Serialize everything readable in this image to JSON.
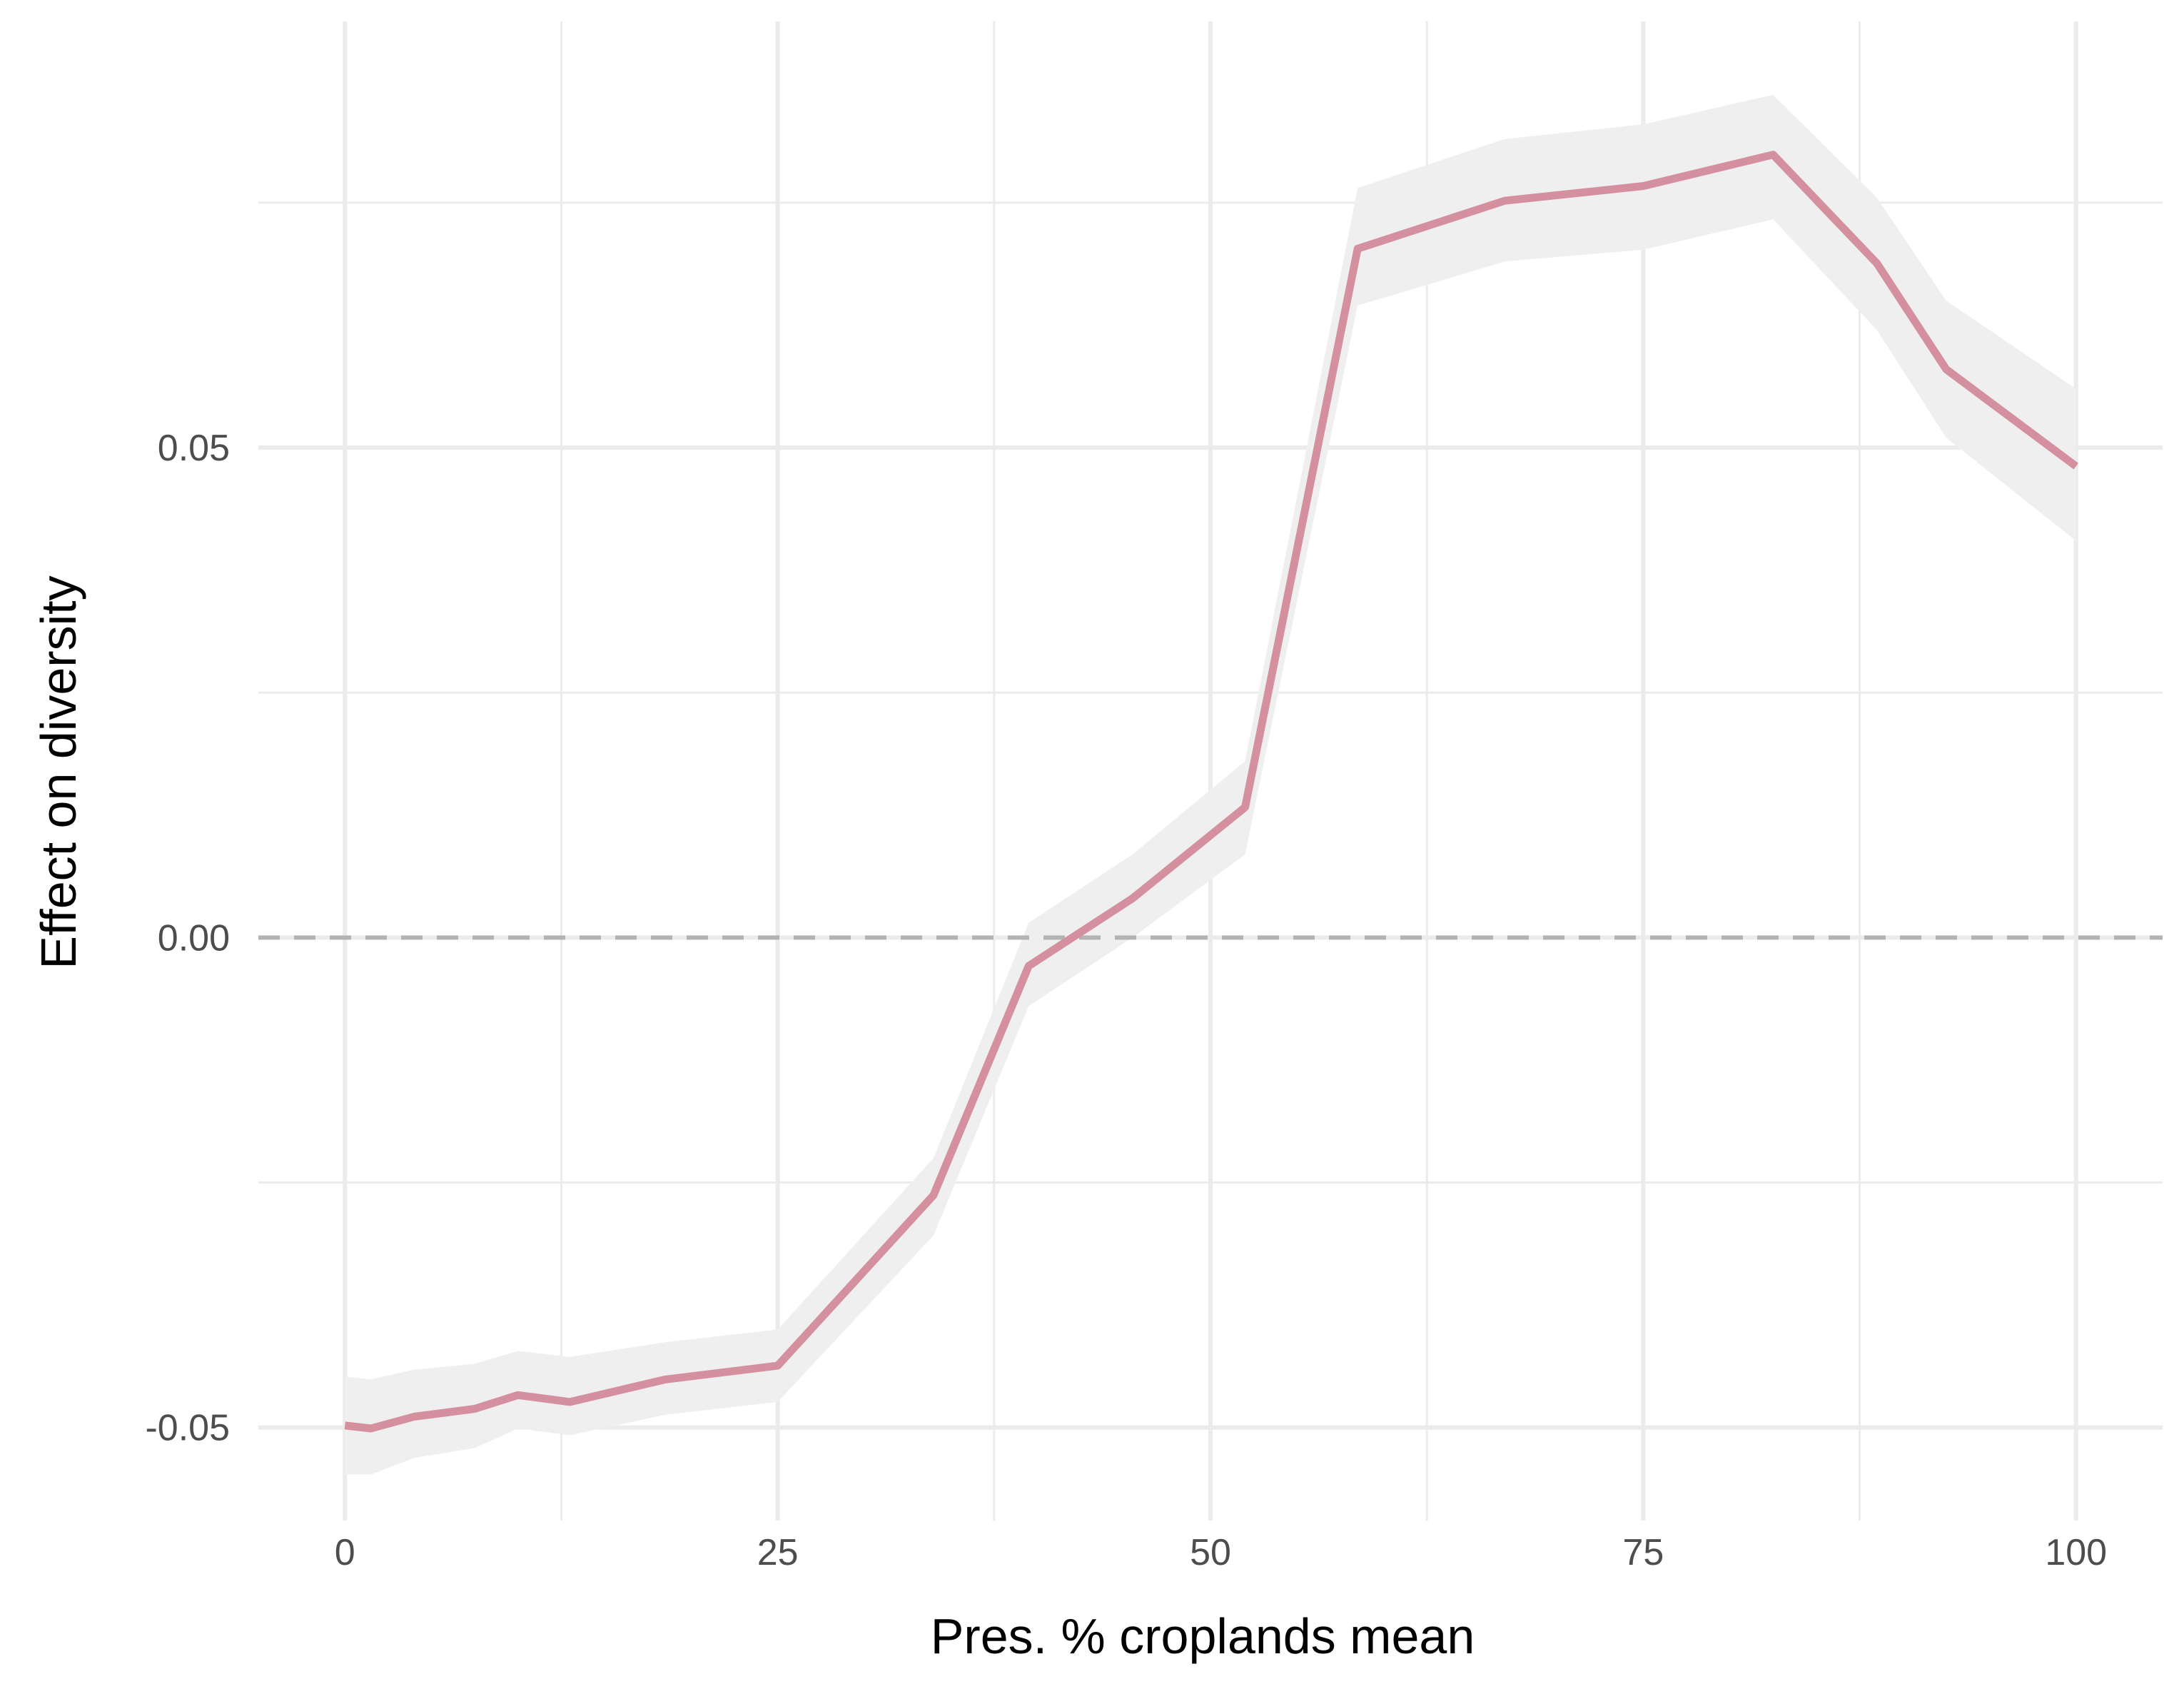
{
  "chart_data": {
    "type": "line",
    "title": "",
    "xlabel": "Pres. % croplands mean",
    "ylabel": "Effect on diversity",
    "xlim": [
      -5,
      105
    ],
    "ylim": [
      -0.0595,
      0.0935
    ],
    "x_ticks": [
      0,
      25,
      50,
      75,
      100
    ],
    "x_tick_labels": [
      "0",
      "25",
      "50",
      "75",
      "100"
    ],
    "x_minor_ticks": [
      12.5,
      37.5,
      62.5,
      87.5
    ],
    "y_ticks": [
      -0.05,
      0.0,
      0.05
    ],
    "y_tick_labels": [
      "-0.05",
      "0.00",
      "0.05"
    ],
    "y_minor_ticks": [
      -0.025,
      0.025,
      0.075
    ],
    "grid": true,
    "reference_line": {
      "y": 0.0,
      "style": "dashed",
      "color": "#b3b3b3"
    },
    "line_color": "#d4909e",
    "ribbon_color": "#efefef",
    "series": [
      {
        "x": [
          0,
          1.5,
          4,
          7.5,
          10,
          13,
          18.5,
          25,
          34,
          39.5,
          45.5,
          52,
          58.5,
          67,
          75,
          82.5,
          88.5,
          92.5,
          100
        ],
        "y": [
          -0.0498,
          -0.0501,
          -0.0489,
          -0.0481,
          -0.0467,
          -0.0474,
          -0.0451,
          -0.0437,
          -0.0263,
          -0.0029,
          0.004,
          0.0133,
          0.0703,
          0.0752,
          0.0767,
          0.0799,
          0.0688,
          0.058,
          0.0481
        ],
        "lower": [
          -0.0548,
          -0.0548,
          -0.0531,
          -0.0521,
          -0.0501,
          -0.0508,
          -0.0487,
          -0.0474,
          -0.0304,
          -0.007,
          0.0,
          0.0085,
          0.0645,
          0.069,
          0.0702,
          0.0733,
          0.062,
          0.051,
          0.0405
        ],
        "upper": [
          -0.0448,
          -0.0451,
          -0.0441,
          -0.0435,
          -0.0422,
          -0.0428,
          -0.0413,
          -0.04,
          -0.0225,
          0.0015,
          0.0085,
          0.018,
          0.0765,
          0.0815,
          0.083,
          0.086,
          0.0755,
          0.065,
          0.056
        ]
      }
    ]
  }
}
